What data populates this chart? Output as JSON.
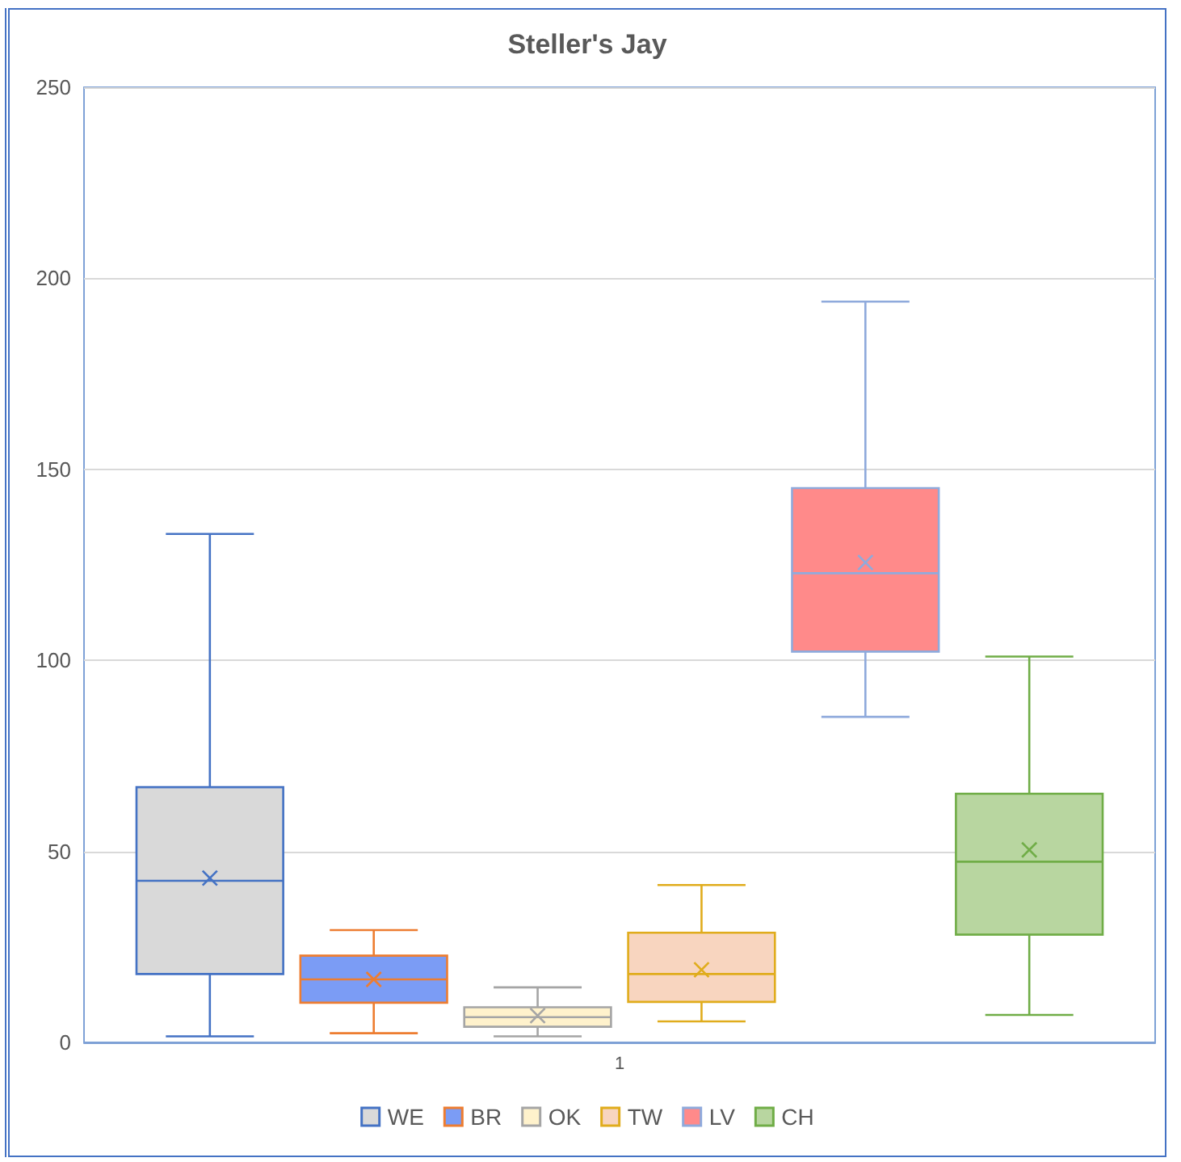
{
  "chart_data": {
    "type": "box",
    "title": "Steller's Jay",
    "categories": [
      "1"
    ],
    "series": [
      {
        "name": "WE",
        "color": "#d9d9d9",
        "boxes": [
          {
            "low": 1.6,
            "q1": 17.9,
            "median": 42.3,
            "q3": 66.8,
            "high": 133.1,
            "mean": 43
          }
        ]
      },
      {
        "name": "BR",
        "color": "#7b9cf5",
        "boxes": [
          {
            "low": 2.4,
            "q1": 10.4,
            "median": 16.5,
            "q3": 22.7,
            "high": 29.4,
            "mean": 16.5
          }
        ]
      },
      {
        "name": "OK",
        "color": "#fff2cc",
        "boxes": [
          {
            "low": 1.6,
            "q1": 4.1,
            "median": 6.6,
            "q3": 9.2,
            "high": 14.4,
            "mean": 7
          }
        ]
      },
      {
        "name": "TW",
        "color": "#f8d5bf",
        "boxes": [
          {
            "low": 5.5,
            "q1": 10.6,
            "median": 17.9,
            "q3": 28.7,
            "high": 41.2,
            "mean": 19
          }
        ]
      },
      {
        "name": "LV",
        "color": "#ff8a8a",
        "boxes": [
          {
            "low": 85.2,
            "q1": 102.3,
            "median": 122.8,
            "q3": 145.1,
            "high": 193.9,
            "mean": 125.6
          }
        ]
      },
      {
        "name": "CH",
        "color": "#b8d6a0",
        "boxes": [
          {
            "low": 7.2,
            "q1": 28.2,
            "median": 47.3,
            "q3": 65.1,
            "high": 101,
            "mean": 50.4
          }
        ]
      }
    ],
    "ylim": [
      0,
      250
    ],
    "yticks": [
      0,
      50,
      100,
      150,
      200,
      250
    ],
    "grid": "y",
    "legend": "bottom"
  }
}
